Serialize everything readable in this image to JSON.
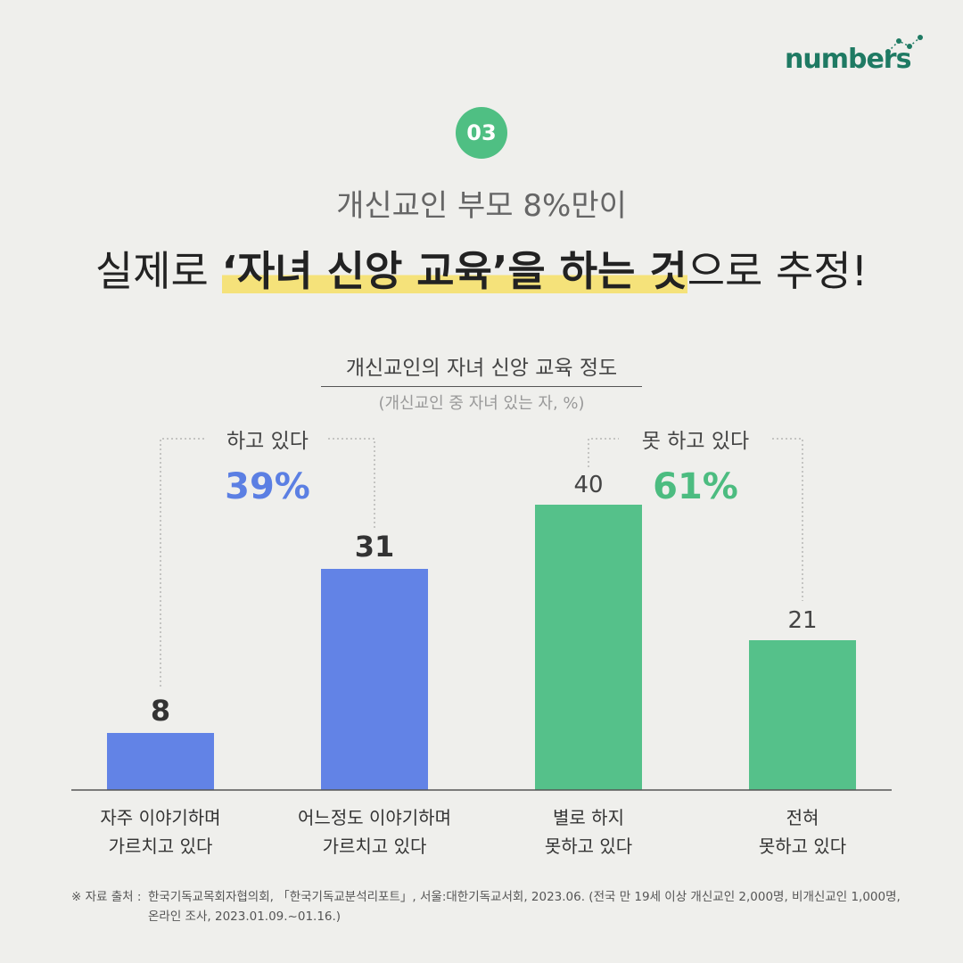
{
  "brand": {
    "name": "numbers",
    "accent": "#1f7a63"
  },
  "badge": "03",
  "subtitle": "개신교인 부모 8%만이",
  "headline": {
    "pre": "실제로 ",
    "highlight": "‘자녀 신앙 교육’을 하는 것",
    "post": "으로 추정!"
  },
  "chart_data": {
    "type": "bar",
    "title": "개신교인의 자녀 신앙 교육 정도",
    "note": "(개신교인 중 자녀 있는 자, %)",
    "categories": [
      [
        "자주 이야기하며",
        "가르치고 있다"
      ],
      [
        "어느정도 이야기하며",
        "가르치고 있다"
      ],
      [
        "별로 하지",
        "못하고 있다"
      ],
      [
        "전혀",
        "못하고 있다"
      ]
    ],
    "values": [
      8,
      31,
      40,
      21
    ],
    "value_labels": [
      "8",
      "31",
      "40",
      "21"
    ],
    "colors": [
      "#6283e6",
      "#6283e6",
      "#55c18a",
      "#55c18a"
    ],
    "ylim": [
      0,
      45
    ],
    "groups": [
      {
        "label": "하고 있다",
        "value": "39%",
        "color": "#5b7fe3"
      },
      {
        "label": "못 하고 있다",
        "value": "61%",
        "color": "#4cbc80"
      }
    ]
  },
  "footnote": {
    "prefix": "※ 자료 출처 :",
    "line1": "한국기독교목회자협의회, 「한국기독교분석리포트」, 서울:대한기독교서회, 2023.06. (전국 만 19세 이상 개신교인 2,000명, 비개신교인 1,000명,",
    "line2": "온라인 조사, 2023.01.09.~01.16.)"
  }
}
